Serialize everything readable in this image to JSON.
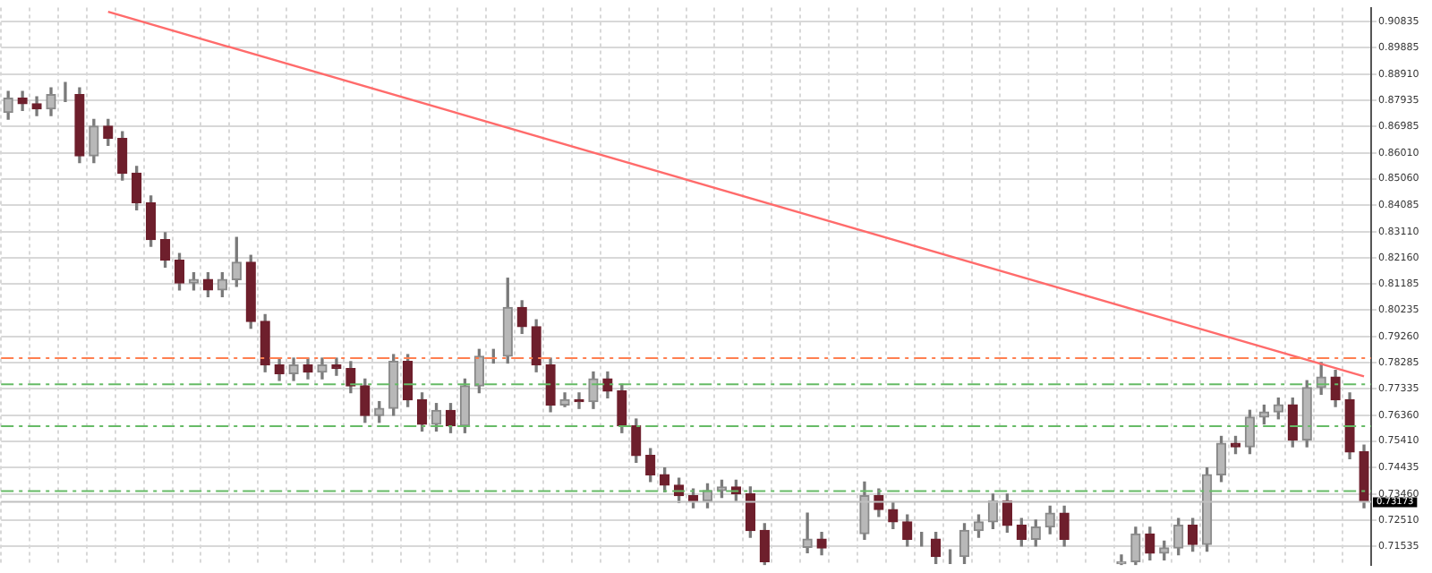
{
  "chart_data": {
    "type": "candlestick",
    "categories": [
      null,
      null,
      null,
      null,
      null,
      null,
      null,
      null,
      null,
      null,
      null,
      null,
      null,
      null,
      null,
      null,
      null,
      null,
      null,
      null,
      null,
      null,
      null,
      null,
      null,
      null,
      null,
      null,
      null,
      null,
      null,
      null,
      null,
      null,
      null,
      null,
      null,
      null,
      null,
      null,
      null,
      null,
      null,
      null,
      null,
      null,
      null,
      null,
      null,
      null,
      null,
      null,
      null,
      null,
      null,
      null,
      null,
      null,
      null,
      null,
      null,
      null,
      null,
      null,
      null,
      null,
      null,
      null,
      null,
      null,
      null,
      null,
      null,
      null,
      null,
      null,
      null,
      null,
      null,
      null,
      null,
      null,
      null,
      null,
      null,
      null,
      null,
      null,
      null,
      null,
      null,
      null,
      null,
      null,
      null,
      null
    ],
    "ohlc": [
      [
        0.875,
        0.8827,
        0.8725,
        0.8802
      ],
      [
        0.8802,
        0.8827,
        0.8757,
        0.8782
      ],
      [
        0.8782,
        0.8807,
        0.8738,
        0.8763
      ],
      [
        0.8763,
        0.884,
        0.8738,
        0.8815
      ],
      [
        0.8815,
        0.886,
        0.879,
        0.8815
      ],
      [
        0.8815,
        0.884,
        0.8565,
        0.859
      ],
      [
        0.859,
        0.8724,
        0.8565,
        0.8699
      ],
      [
        0.8699,
        0.8724,
        0.8629,
        0.8654
      ],
      [
        0.8654,
        0.8679,
        0.8501,
        0.8526
      ],
      [
        0.8526,
        0.8551,
        0.8392,
        0.8417
      ],
      [
        0.8417,
        0.8442,
        0.8257,
        0.8282
      ],
      [
        0.8282,
        0.8307,
        0.8181,
        0.8206
      ],
      [
        0.8206,
        0.8231,
        0.8097,
        0.8122
      ],
      [
        0.8122,
        0.816,
        0.8097,
        0.8135
      ],
      [
        0.8135,
        0.816,
        0.8072,
        0.8097
      ],
      [
        0.8097,
        0.816,
        0.8072,
        0.8135
      ],
      [
        0.8135,
        0.829,
        0.811,
        0.8199
      ],
      [
        0.8199,
        0.8224,
        0.7956,
        0.7981
      ],
      [
        0.7981,
        0.8006,
        0.7796,
        0.7821
      ],
      [
        0.7821,
        0.7846,
        0.7764,
        0.7789
      ],
      [
        0.7789,
        0.7846,
        0.7764,
        0.7821
      ],
      [
        0.7821,
        0.7846,
        0.777,
        0.7795
      ],
      [
        0.7795,
        0.7846,
        0.777,
        0.7821
      ],
      [
        0.7821,
        0.7846,
        0.7783,
        0.7808
      ],
      [
        0.7808,
        0.7833,
        0.7719,
        0.7744
      ],
      [
        0.7744,
        0.7769,
        0.761,
        0.7635
      ],
      [
        0.7635,
        0.7686,
        0.761,
        0.7661
      ],
      [
        0.7661,
        0.7859,
        0.7636,
        0.7834
      ],
      [
        0.7834,
        0.7859,
        0.7668,
        0.7693
      ],
      [
        0.7693,
        0.7718,
        0.7578,
        0.7603
      ],
      [
        0.7603,
        0.7679,
        0.7578,
        0.7654
      ],
      [
        0.7654,
        0.7679,
        0.7572,
        0.7597
      ],
      [
        0.7597,
        0.7769,
        0.7572,
        0.7744
      ],
      [
        0.7744,
        0.7878,
        0.7719,
        0.7853
      ],
      [
        0.7853,
        0.7878,
        0.7828,
        0.7853
      ],
      [
        0.7853,
        0.814,
        0.7828,
        0.8032
      ],
      [
        0.8032,
        0.8057,
        0.7937,
        0.7962
      ],
      [
        0.7962,
        0.7987,
        0.7796,
        0.7821
      ],
      [
        0.7821,
        0.7846,
        0.7649,
        0.7674
      ],
      [
        0.7674,
        0.7718,
        0.7668,
        0.7693
      ],
      [
        0.7693,
        0.7718,
        0.7661,
        0.7686
      ],
      [
        0.7686,
        0.7795,
        0.7661,
        0.777
      ],
      [
        0.777,
        0.7795,
        0.77,
        0.7725
      ],
      [
        0.7725,
        0.775,
        0.7572,
        0.7597
      ],
      [
        0.7597,
        0.7622,
        0.7463,
        0.7488
      ],
      [
        0.7488,
        0.7513,
        0.7392,
        0.7417
      ],
      [
        0.7417,
        0.7442,
        0.7354,
        0.7379
      ],
      [
        0.7379,
        0.7404,
        0.7315,
        0.734
      ],
      [
        0.734,
        0.7365,
        0.7296,
        0.7321
      ],
      [
        0.7321,
        0.7384,
        0.7296,
        0.7359
      ],
      [
        0.7359,
        0.7397,
        0.7334,
        0.7372
      ],
      [
        0.7372,
        0.7397,
        0.7322,
        0.7347
      ],
      [
        0.7347,
        0.7372,
        0.7187,
        0.7212
      ],
      [
        0.7212,
        0.7237,
        0.7087,
        0.7097
      ],
      null,
      null,
      [
        0.715,
        0.7276,
        0.713,
        0.718
      ],
      [
        0.718,
        0.7205,
        0.7123,
        0.7148
      ],
      null,
      null,
      [
        0.72,
        0.739,
        0.718,
        0.734
      ],
      [
        0.734,
        0.7365,
        0.7264,
        0.7289
      ],
      [
        0.7289,
        0.7314,
        0.7219,
        0.7244
      ],
      [
        0.7244,
        0.7269,
        0.7155,
        0.718
      ],
      [
        0.718,
        0.7205,
        0.7155,
        0.718
      ],
      [
        0.718,
        0.7205,
        0.7091,
        0.7116
      ],
      [
        0.7116,
        0.7141,
        0.7091,
        0.7116
      ],
      [
        0.7116,
        0.7237,
        0.7091,
        0.7212
      ],
      [
        0.7212,
        0.7269,
        0.7187,
        0.7244
      ],
      [
        0.7244,
        0.7346,
        0.7219,
        0.7321
      ],
      [
        0.7321,
        0.7346,
        0.7206,
        0.7231
      ],
      [
        0.7231,
        0.7256,
        0.7155,
        0.718
      ],
      [
        0.718,
        0.725,
        0.7155,
        0.7225
      ],
      [
        0.7225,
        0.7301,
        0.72,
        0.7276
      ],
      [
        0.7276,
        0.7301,
        0.7155,
        0.718
      ],
      null,
      null,
      null,
      [
        0.709,
        0.7122,
        0.7087,
        0.7097
      ],
      [
        0.7097,
        0.7224,
        0.7087,
        0.7199
      ],
      [
        0.7199,
        0.7224,
        0.7104,
        0.7129
      ],
      [
        0.7129,
        0.7173,
        0.7104,
        0.7148
      ],
      [
        0.7148,
        0.7256,
        0.7123,
        0.7231
      ],
      [
        0.7231,
        0.7256,
        0.7136,
        0.7161
      ],
      [
        0.7161,
        0.7442,
        0.7136,
        0.7417
      ],
      [
        0.7417,
        0.7558,
        0.7392,
        0.7533
      ],
      [
        0.7533,
        0.7558,
        0.7495,
        0.752
      ],
      [
        0.752,
        0.7654,
        0.7495,
        0.7629
      ],
      [
        0.7629,
        0.7673,
        0.7604,
        0.7648
      ],
      [
        0.7648,
        0.7699,
        0.7623,
        0.7674
      ],
      [
        0.7674,
        0.7699,
        0.752,
        0.7545
      ],
      [
        0.7545,
        0.7763,
        0.752,
        0.7738
      ],
      [
        0.7738,
        0.783,
        0.7713,
        0.7776
      ],
      [
        0.7776,
        0.7801,
        0.7668,
        0.7693
      ],
      [
        0.7693,
        0.7718,
        0.7476,
        0.7501
      ],
      [
        0.7501,
        0.7526,
        0.7296,
        0.7321
      ]
    ],
    "series": [
      {
        "type": "line",
        "color": "#ff6b6b",
        "values": [
          null,
          null,
          null,
          null,
          null,
          null,
          null,
          0.912,
          null,
          null,
          null,
          null,
          null,
          null,
          null,
          null,
          null,
          null,
          null,
          null,
          null,
          null,
          null,
          null,
          null,
          null,
          null,
          null,
          null,
          null,
          null,
          null,
          null,
          null,
          null,
          null,
          null,
          null,
          null,
          null,
          null,
          null,
          null,
          null,
          null,
          null,
          null,
          null,
          null,
          null,
          null,
          null,
          null,
          null,
          null,
          null,
          null,
          null,
          null,
          null,
          null,
          null,
          null,
          null,
          null,
          null,
          null,
          null,
          null,
          null,
          null,
          null,
          null,
          null,
          null,
          null,
          null,
          null,
          null,
          null,
          null,
          null,
          null,
          null,
          null,
          null,
          null,
          null,
          null,
          null,
          null,
          null,
          null,
          null,
          null,
          0.7779
        ]
      }
    ],
    "ylim": [
      0.7084,
      0.9135
    ],
    "yticks": [
      0.90835,
      0.89885,
      {
        "value": 0.8891,
        "label": "0.88910"
      },
      0.87935,
      0.86985,
      {
        "value": 0.8601,
        "label": "0.86010"
      },
      {
        "value": 0.8506,
        "label": "0.85060"
      },
      0.84085,
      {
        "value": 0.8311,
        "label": "0.83110"
      },
      {
        "value": 0.8216,
        "label": "0.82160"
      },
      0.81185,
      0.80235,
      {
        "value": 0.7926,
        "label": "0.79260"
      },
      0.78285,
      0.77335,
      {
        "value": 0.7636,
        "label": "0.76360"
      },
      {
        "value": 0.7541,
        "label": "0.75410"
      },
      0.74435,
      {
        "value": 0.7346,
        "label": "0.73460"
      },
      {
        "value": 0.7251,
        "label": "0.72510"
      },
      0.71535
    ],
    "ref_lines": [
      {
        "axis": "y",
        "value": 0.7846,
        "color": "#ff7f50",
        "line_style": "dashed"
      },
      {
        "axis": "y",
        "value": 0.775,
        "color": "#66bb66",
        "line_style": "dashed"
      },
      {
        "axis": "y",
        "value": 0.7596,
        "color": "#66bb66",
        "line_style": "dashed"
      },
      {
        "axis": "y",
        "value": 0.7357,
        "color": "#66bb66",
        "line_style": "dashed"
      },
      {
        "axis": "y",
        "value": 0.73173,
        "color": "#c0c0c0",
        "line_style": "solid",
        "label": "0.73173"
      }
    ],
    "grid": true,
    "legend": false
  }
}
